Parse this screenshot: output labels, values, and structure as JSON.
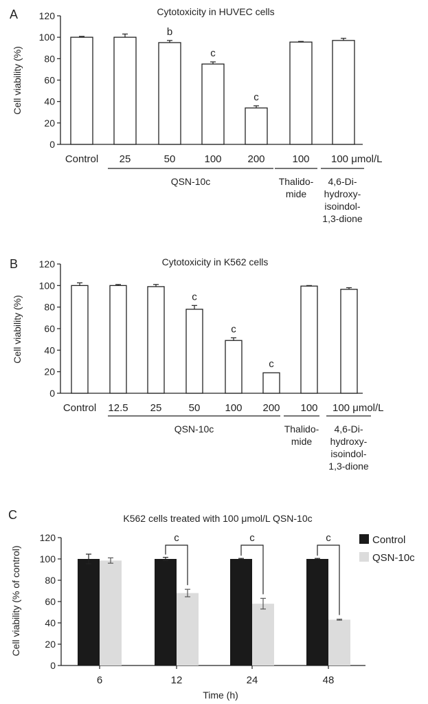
{
  "chart_data": [
    {
      "panel": "A",
      "type": "bar",
      "title": "Cytotoxicity in HUVEC cells",
      "ylabel": "Cell viability (%)",
      "ylim": [
        0,
        120
      ],
      "yticks": [
        0,
        20,
        40,
        60,
        80,
        100,
        120
      ],
      "categories": [
        "Control",
        "25",
        "50",
        "100",
        "200",
        "100",
        "100 μmol/L"
      ],
      "values": [
        100,
        100,
        95,
        75,
        34,
        95.5,
        97
      ],
      "errors": [
        0.8,
        3,
        2,
        2,
        2,
        0.6,
        2
      ],
      "annotations": [
        "",
        "",
        "b",
        "c",
        "c",
        "",
        ""
      ],
      "groups": [
        {
          "label": "QSN-10c",
          "from": 1,
          "to": 4
        },
        {
          "label": "Thalido-\nmide",
          "from": 5,
          "to": 5
        },
        {
          "label": "4,6-Di-\nhydroxy-\nisoindol-\n1,3-dione",
          "from": 6,
          "to": 6
        }
      ]
    },
    {
      "panel": "B",
      "type": "bar",
      "title": "Cytotoxicity in K562 cells",
      "ylabel": "Cell viability (%)",
      "ylim": [
        0,
        120
      ],
      "yticks": [
        0,
        20,
        40,
        60,
        80,
        100,
        120
      ],
      "categories": [
        "Control",
        "12.5",
        "25",
        "50",
        "100",
        "200",
        "100",
        "100 μmol/L"
      ],
      "values": [
        100,
        100,
        99,
        78,
        49,
        19,
        99.5,
        96.5
      ],
      "errors": [
        2.5,
        1,
        2,
        3.5,
        2.5,
        0,
        0.5,
        1.5
      ],
      "annotations": [
        "",
        "",
        "",
        "c",
        "c",
        "c",
        "",
        ""
      ],
      "groups": [
        {
          "label": "QSN-10c",
          "from": 1,
          "to": 5
        },
        {
          "label": "Thalido-\nmide",
          "from": 6,
          "to": 6
        },
        {
          "label": "4,6-Di-\nhydroxy-\nisoindol-\n1,3-dione",
          "from": 7,
          "to": 7
        }
      ]
    },
    {
      "panel": "C",
      "type": "bar",
      "title": "K562 cells treated with 100 μmol/L QSN-10c",
      "ylabel": "Cell viability (% of control)",
      "xlabel": "Time (h)",
      "ylim": [
        0,
        120
      ],
      "yticks": [
        0,
        20,
        40,
        60,
        80,
        100,
        120
      ],
      "categories": [
        "6",
        "12",
        "24",
        "48"
      ],
      "series": [
        {
          "name": "Control",
          "color": "#1a1a1a",
          "values": [
            100,
            100,
            100,
            100
          ],
          "errors": [
            4.5,
            1.5,
            0.5,
            0.5
          ]
        },
        {
          "name": "QSN-10c",
          "color": "#dcdcdc",
          "values": [
            98.5,
            68,
            58,
            43
          ],
          "errors": [
            2.5,
            3.5,
            5,
            0.5
          ]
        }
      ],
      "annotations": [
        "",
        "c",
        "c",
        "c"
      ],
      "legend": "top-right"
    }
  ]
}
